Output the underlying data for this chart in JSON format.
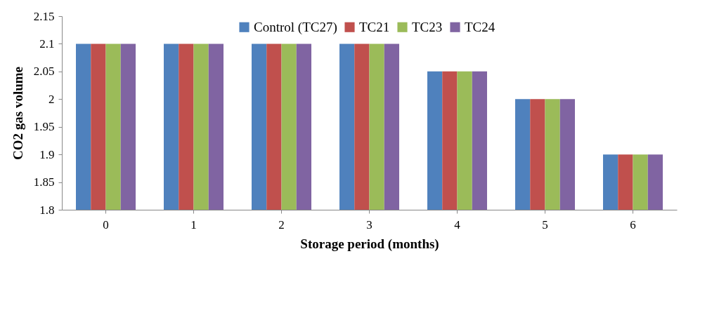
{
  "chart_data": {
    "type": "bar",
    "xlabel": "Storage period (months)",
    "ylabel": "CO2 gas volume",
    "categories": [
      "0",
      "1",
      "2",
      "3",
      "4",
      "5",
      "6"
    ],
    "series": [
      {
        "name": "Control (TC27)",
        "color": "#4f81bd",
        "values": [
          2.1,
          2.1,
          2.1,
          2.1,
          2.05,
          2.0,
          1.9
        ]
      },
      {
        "name": "TC21",
        "color": "#c0504d",
        "values": [
          2.1,
          2.1,
          2.1,
          2.1,
          2.05,
          2.0,
          1.9
        ]
      },
      {
        "name": "TC23",
        "color": "#9bbb59",
        "values": [
          2.1,
          2.1,
          2.1,
          2.1,
          2.05,
          2.0,
          1.9
        ]
      },
      {
        "name": "TC24",
        "color": "#8064a2",
        "values": [
          2.1,
          2.1,
          2.1,
          2.1,
          2.05,
          2.0,
          1.9
        ]
      }
    ],
    "ylim": [
      1.8,
      2.15
    ],
    "yticks": [
      1.8,
      1.85,
      1.9,
      1.95,
      2,
      2.05,
      2.1,
      2.15
    ],
    "grid": false,
    "legend": "top"
  }
}
